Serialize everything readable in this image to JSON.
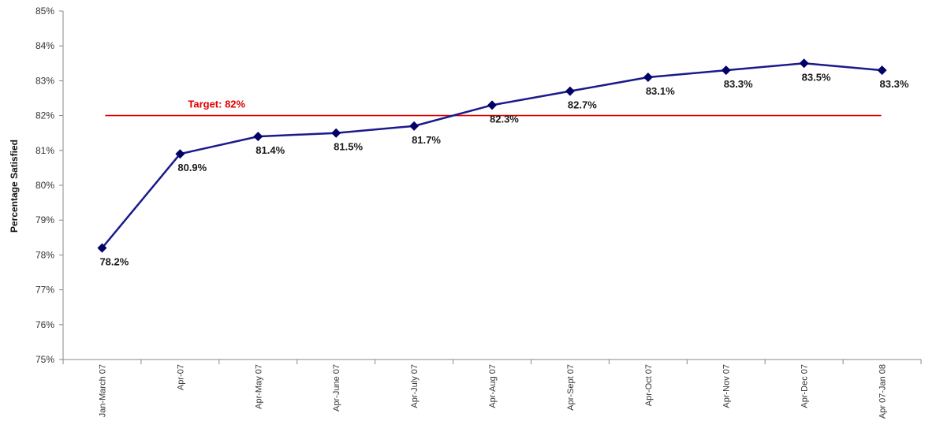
{
  "chart_data": {
    "type": "line",
    "ylabel": "Percentage Satisfied",
    "ylim": [
      75,
      85
    ],
    "ytick_labels": [
      "75%",
      "76%",
      "77%",
      "78%",
      "79%",
      "80%",
      "81%",
      "82%",
      "83%",
      "84%",
      "85%"
    ],
    "categories": [
      "Jan-March 07",
      "Apr-07",
      "Apr-May 07",
      "Apr-June 07",
      "Apr-July 07",
      "Apr-Aug 07",
      "Apr-Sept 07",
      "Apr-Oct 07",
      "Apr-Nov 07",
      "Apr-Dec 07",
      "Apr 07-Jan 08"
    ],
    "series": [
      {
        "values": [
          78.2,
          80.9,
          81.4,
          81.5,
          81.7,
          82.3,
          82.7,
          83.1,
          83.3,
          83.5,
          83.3
        ],
        "labels": [
          "78.2%",
          "80.9%",
          "81.4%",
          "81.5%",
          "81.7%",
          "82.3%",
          "82.7%",
          "83.1%",
          "83.3%",
          "83.5%",
          "83.3%"
        ],
        "color": "#1a1a8c",
        "marker": "diamond"
      }
    ],
    "target": {
      "value": 82,
      "label": "Target: 82%",
      "color": "#e00000"
    },
    "grid": false,
    "legend": "none"
  }
}
